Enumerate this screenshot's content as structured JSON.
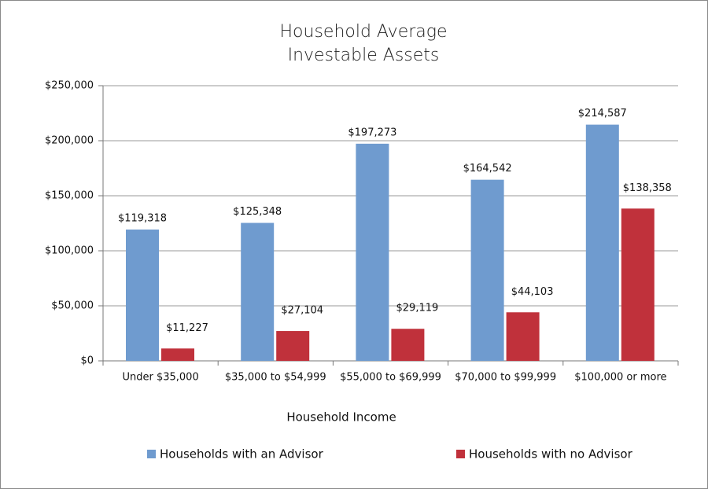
{
  "chart_data": {
    "type": "bar",
    "title": "Household Average Investable Assets",
    "x_label": "Household Income",
    "categories": [
      "Under $35,000",
      "$35,000 to $54,999",
      "$55,000 to $69,999",
      "$70,000 to $99,999",
      "$100,000 or more"
    ],
    "series": [
      {
        "name": "Households with an Advisor",
        "color": "#6f9bcf",
        "values": [
          119318,
          125348,
          197273,
          164542,
          214587
        ],
        "value_labels": [
          "$119,318",
          "$125,348",
          "$197,273",
          "$164,542",
          "$214,587"
        ]
      },
      {
        "name": "Households with no Advisor",
        "color": "#c0313b",
        "values": [
          11227,
          27104,
          29119,
          44103,
          138358
        ],
        "value_labels": [
          "$11,227",
          "$27,104",
          "$29,119",
          "$44,103",
          "$138,358"
        ]
      }
    ],
    "ylim": [
      0,
      250000
    ],
    "yticks": [
      {
        "value": 0,
        "label": "$0"
      },
      {
        "value": 50000,
        "label": "$50,000"
      },
      {
        "value": 100000,
        "label": "$100,000"
      },
      {
        "value": 150000,
        "label": "$150,000"
      },
      {
        "value": 200000,
        "label": "$200,000"
      },
      {
        "value": 250000,
        "label": "$250,000"
      }
    ],
    "grid": true,
    "legend": "bottom"
  }
}
